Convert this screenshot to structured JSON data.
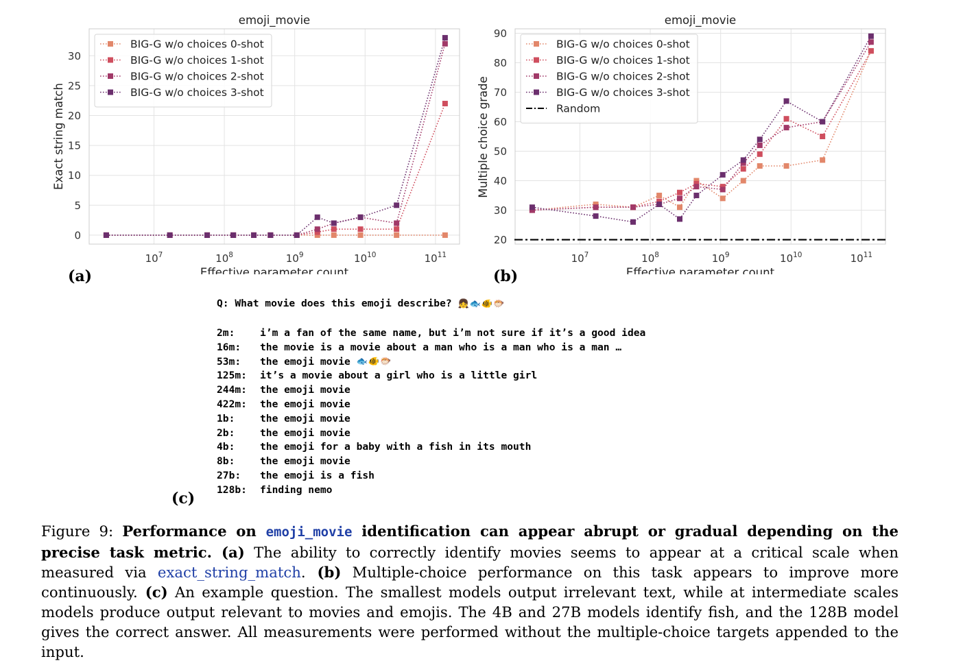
{
  "chart_data": [
    {
      "type": "line",
      "title": "emoji_movie",
      "xlabel": "Effective parameter count",
      "ylabel": "Exact string match",
      "xscale": "log",
      "xlim": [
        1200000,
        220000000000
      ],
      "ylim": [
        -1.5,
        34.5
      ],
      "yticks": [
        0,
        5,
        10,
        15,
        20,
        25,
        30
      ],
      "xtick_labels": [
        "10^7",
        "10^8",
        "10^9",
        "10^10",
        "10^11"
      ],
      "xtick_values": [
        10000000,
        100000000,
        1000000000,
        10000000000,
        100000000000
      ],
      "grid": true,
      "legend_position": "top-left",
      "series": [
        {
          "name": "BIG-G w/o choices 0-shot",
          "color": "#e2876a",
          "x": [
            2100000,
            16800000,
            57000000,
            134000000,
            262000000,
            453000000,
            1070000000,
            2100000000,
            3600000000,
            8600000000,
            28000000000,
            137000000000
          ],
          "y": [
            0,
            0,
            0,
            0,
            0,
            0,
            0,
            0,
            0,
            0,
            0,
            0
          ]
        },
        {
          "name": "BIG-G w/o choices 1-shot",
          "color": "#cf4e5e",
          "x": [
            2100000,
            16800000,
            57000000,
            134000000,
            262000000,
            453000000,
            1070000000,
            2100000000,
            3600000000,
            8600000000,
            28000000000,
            137000000000
          ],
          "y": [
            0,
            0,
            0,
            0,
            0,
            0,
            0,
            0.5,
            1,
            1,
            1,
            22
          ]
        },
        {
          "name": "BIG-G w/o choices 2-shot",
          "color": "#a13968",
          "x": [
            2100000,
            16800000,
            57000000,
            134000000,
            262000000,
            453000000,
            1070000000,
            2100000000,
            3600000000,
            8600000000,
            28000000000,
            137000000000
          ],
          "y": [
            0,
            0,
            0,
            0,
            0,
            0,
            0,
            1,
            2,
            3,
            2,
            32
          ]
        },
        {
          "name": "BIG-G w/o choices 3-shot",
          "color": "#6b2f6d",
          "x": [
            2100000,
            16800000,
            57000000,
            134000000,
            262000000,
            453000000,
            1070000000,
            2100000000,
            3600000000,
            8600000000,
            28000000000,
            137000000000
          ],
          "y": [
            0,
            0,
            0,
            0,
            0,
            0,
            0,
            3,
            2,
            3,
            5,
            33
          ]
        }
      ]
    },
    {
      "type": "line",
      "title": "emoji_movie",
      "xlabel": "Effective parameter count",
      "ylabel": "Multiple choice grade",
      "xscale": "log",
      "xlim": [
        1200000,
        220000000000
      ],
      "ylim": [
        18.5,
        91.5
      ],
      "yticks": [
        20,
        30,
        40,
        50,
        60,
        70,
        80,
        90
      ],
      "xtick_labels": [
        "10^7",
        "10^8",
        "10^9",
        "10^10",
        "10^11"
      ],
      "xtick_values": [
        10000000,
        100000000,
        1000000000,
        10000000000,
        100000000000
      ],
      "grid": true,
      "legend_position": "top-left",
      "random_baseline": {
        "name": "Random",
        "y": 20,
        "color": "#000000"
      },
      "series": [
        {
          "name": "BIG-G w/o choices 0-shot",
          "color": "#e2876a",
          "x": [
            2100000,
            16800000,
            57000000,
            134000000,
            262000000,
            453000000,
            1070000000,
            2100000000,
            3600000000,
            8600000000,
            28000000000,
            137000000000
          ],
          "y": [
            30,
            32,
            31,
            35,
            31,
            40,
            34,
            40,
            45,
            45,
            47,
            84
          ]
        },
        {
          "name": "BIG-G w/o choices 1-shot",
          "color": "#cf4e5e",
          "x": [
            2100000,
            16800000,
            57000000,
            134000000,
            262000000,
            453000000,
            1070000000,
            2100000000,
            3600000000,
            8600000000,
            28000000000,
            137000000000
          ],
          "y": [
            30,
            31,
            31,
            33,
            36,
            39,
            38,
            44,
            49,
            61,
            55,
            84
          ]
        },
        {
          "name": "BIG-G w/o choices 2-shot",
          "color": "#a13968",
          "x": [
            2100000,
            16800000,
            57000000,
            134000000,
            262000000,
            453000000,
            1070000000,
            2100000000,
            3600000000,
            8600000000,
            28000000000,
            137000000000
          ],
          "y": [
            30,
            31,
            31,
            32,
            34,
            38,
            37,
            46,
            52,
            58,
            60,
            87
          ]
        },
        {
          "name": "BIG-G w/o choices 3-shot",
          "color": "#6b2f6d",
          "x": [
            2100000,
            16800000,
            57000000,
            134000000,
            262000000,
            453000000,
            1070000000,
            2100000000,
            3600000000,
            8600000000,
            28000000000,
            137000000000
          ],
          "y": [
            31,
            28,
            26,
            32,
            27,
            35,
            42,
            47,
            54,
            67,
            60,
            89
          ]
        }
      ]
    }
  ],
  "panel_labels": {
    "a": "(a)",
    "b": "(b)",
    "c": "(c)"
  },
  "example": {
    "question": "Q: What movie does this emoji describe?",
    "question_emoji": "👧🐟🐠🐡",
    "rows": [
      {
        "size": "2m:",
        "text": "i’m a fan of the same name, but i’m not sure if it’s a good idea"
      },
      {
        "size": "16m:",
        "text": "the movie is a movie about a man who is a man who is a man …"
      },
      {
        "size": "53m:",
        "text": "the emoji movie ",
        "emoji": "🐟🐠🐡"
      },
      {
        "size": "125m:",
        "text": "it’s a movie about a girl who is a little girl"
      },
      {
        "size": "244m:",
        "text": "the emoji movie"
      },
      {
        "size": "422m:",
        "text": "the emoji movie"
      },
      {
        "size": "1b:",
        "text": "the emoji movie"
      },
      {
        "size": "2b:",
        "text": "the emoji movie"
      },
      {
        "size": "4b:",
        "text": "the emoji for a baby with a fish in its mouth"
      },
      {
        "size": "8b:",
        "text": "the emoji movie"
      },
      {
        "size": "27b:",
        "text": "the emoji is a fish"
      },
      {
        "size": "128b:",
        "text": "finding nemo"
      }
    ]
  },
  "caption": {
    "fig": "Figure 9: ",
    "bold1": "Performance on ",
    "task": "emoji_movie",
    "bold2": " identification can appear abrupt or gradual depending on the precise task metric.",
    "a_label": " (a)",
    "a_text": " The ability to correctly identify movies seems to appear at a critical scale when measured via ",
    "metric": "exact_string_match",
    "a_end": ".",
    "b_label": " (b)",
    "b_text": " Multiple-choice performance on this task appears to improve more continuously.",
    "c_label": " (c)",
    "c_text": " An example question. The smallest models output irrelevant text, while at intermediate scales models produce output relevant to movies and emojis. The 4B and 27B models identify fish, and the 128B model gives the correct answer. All measurements were performed without the multiple-choice targets appended to the input."
  }
}
